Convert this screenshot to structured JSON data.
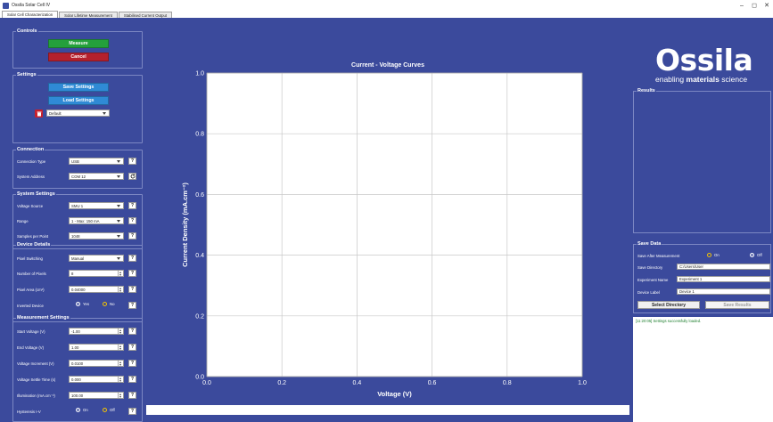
{
  "window": {
    "title": "Ossila Solar Cell IV",
    "controls": [
      "–",
      "◻",
      "✕"
    ]
  },
  "tabs": [
    {
      "label": "Solar Cell Characterization",
      "active": true
    },
    {
      "label": "Solar Lifetime Measurement",
      "active": false
    },
    {
      "label": "Stabilised Current Output",
      "active": false
    }
  ],
  "controls": {
    "title": "Controls",
    "measure_label": "Measure",
    "cancel_label": "Cancel"
  },
  "settings": {
    "title": "Settings",
    "save_label": "Save Settings",
    "load_label": "Load Settings",
    "profile_value": "Default"
  },
  "connection": {
    "title": "Connection",
    "type_label": "Connection Type",
    "type_value": "USB",
    "address_label": "System Address",
    "address_value": "COM 12"
  },
  "system": {
    "title": "System Settings",
    "source_label": "Voltage Source",
    "source_value": "SMU 1",
    "range_label": "Range",
    "range_value": "1 - Max: 150 mA",
    "samples_label": "Samples per Point",
    "samples_value": "1048"
  },
  "device": {
    "title": "Device Details",
    "pixel_switching_label": "Pixel Switching",
    "pixel_switching_value": "Manual",
    "num_pixels_label": "Number of Pixels",
    "num_pixels_value": "8",
    "pixel_area_label": "Pixel Area (cm²)",
    "pixel_area_value": "0.04000",
    "inverted_label": "Inverted Device",
    "inverted_yes": "Yes",
    "inverted_no": "No"
  },
  "measurement": {
    "title": "Measurement Settings",
    "start_label": "Start Voltage (V)",
    "start_value": "-1.00",
    "end_label": "End Voltage (V)",
    "end_value": "1.00",
    "increment_label": "Voltage Increment (V)",
    "increment_value": "0.0100",
    "settle_label": "Voltage Settle Time (s)",
    "settle_value": "0.000",
    "illumination_label": "Illumination (mA.cm⁻²)",
    "illumination_value": "100.00",
    "hysteresis_label": "Hysteresis I-V",
    "hysteresis_on": "On",
    "hysteresis_off": "Off"
  },
  "help_glyph": "?",
  "logo": {
    "name": "Ossila",
    "tagline_prefix": "enabling ",
    "tagline_bold": "materials",
    "tagline_suffix": " science"
  },
  "results": {
    "title": "Results"
  },
  "save_data": {
    "title": "Save Data",
    "after_label": "Save After Measurement",
    "on_label": "On",
    "off_label": "Off",
    "dir_label": "Save Directory",
    "dir_value": "C:/Users/User",
    "exp_label": "Experiment Name",
    "exp_value": "Experiment 1",
    "device_label": "Device Label",
    "device_value": "Device 1",
    "select_dir_label": "Select Directory",
    "save_results_label": "Save Results"
  },
  "log": {
    "message": "[11:20:05] Settings successfully loaded."
  },
  "chart_data": {
    "type": "line",
    "title": "Current - Voltage Curves",
    "xlabel": "Voltage (V)",
    "ylabel": "Current Density (mA.cm⁻²)",
    "xlim": [
      0,
      1
    ],
    "ylim": [
      0,
      1
    ],
    "xticks": [
      "0.0",
      "0.2",
      "0.4",
      "0.6",
      "0.8",
      "1.0"
    ],
    "yticks": [
      "0.0",
      "0.2",
      "0.4",
      "0.6",
      "0.8",
      "1.0"
    ],
    "grid": true,
    "series": []
  }
}
